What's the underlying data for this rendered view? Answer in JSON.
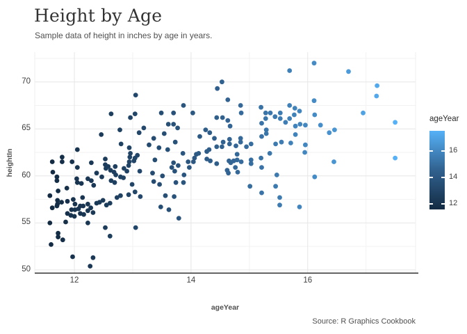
{
  "page": {
    "title": "Height by Age",
    "subtitle": "Sample data of height in inches by age in years.",
    "caption": "Source: R Graphics Cookbook"
  },
  "chart_data": {
    "type": "scatter",
    "title": "Height by Age",
    "subtitle": "Sample data of height in inches by age in years.",
    "caption": "Source: R Graphics Cookbook",
    "xlabel": "ageYear",
    "ylabel": "heightIn",
    "xlim": [
      11.32,
      17.85
    ],
    "ylim": [
      49.66,
      73.16
    ],
    "x_ticks": [
      12,
      14,
      16
    ],
    "x_minor_ticks": [
      13,
      15,
      17
    ],
    "y_ticks": [
      50,
      55,
      60,
      65,
      70
    ],
    "y_minor_ticks": [
      52.5,
      57.5,
      62.5,
      67.5,
      72.5
    ],
    "grid": "on",
    "point_radius": 3.4,
    "colors": {
      "grid_major": "#e6e6e6",
      "grid_minor": "#f2f2f2",
      "panel_edge": "#efefef",
      "axis_line": "#2b2b2b"
    },
    "legend": {
      "title": "ageYear",
      "position": "right",
      "ticks": [
        16,
        14,
        12
      ],
      "domain": [
        11.58,
        17.5
      ],
      "color_low": "#132B43",
      "color_mid": "#31618F",
      "color_high": "#56B1F7"
    },
    "points": [
      [
        13.05,
        68.6
      ],
      [
        14.53,
        70
      ],
      [
        14.45,
        69.3
      ],
      [
        14.63,
        68.1
      ],
      [
        13.87,
        67.5
      ],
      [
        12.63,
        66.6
      ],
      [
        13.7,
        66.7
      ],
      [
        14.03,
        66.7
      ],
      [
        12.96,
        66.2
      ],
      [
        13.04,
        66.6
      ],
      [
        13.61,
        65.5
      ],
      [
        13.7,
        65.5
      ],
      [
        14.44,
        66.2
      ],
      [
        14.54,
        66.2
      ],
      [
        14.63,
        65.9
      ],
      [
        13.77,
        65.1
      ],
      [
        12.46,
        64.4
      ],
      [
        12.78,
        64.9
      ],
      [
        13.11,
        64.6
      ],
      [
        13.19,
        65.1
      ],
      [
        13.36,
        64
      ],
      [
        13.54,
        64.5
      ],
      [
        13.73,
        63.6
      ],
      [
        12.8,
        63.4
      ],
      [
        12.94,
        63
      ],
      [
        13.28,
        63.3
      ],
      [
        12.05,
        62.8
      ],
      [
        12.96,
        62.4
      ],
      [
        13.86,
        62.4
      ],
      [
        14.09,
        62.3
      ],
      [
        14.13,
        62.4
      ],
      [
        14.27,
        62.6
      ],
      [
        14.31,
        62.8
      ],
      [
        14.44,
        63.1
      ],
      [
        14.53,
        63.1
      ],
      [
        14.79,
        62.3
      ],
      [
        15.35,
        62.4
      ],
      [
        15.95,
        62.5
      ],
      [
        16.11,
        72
      ],
      [
        15.69,
        71.2
      ],
      [
        16.7,
        71.1
      ],
      [
        17.19,
        69.6
      ],
      [
        17.18,
        68.5
      ],
      [
        16.11,
        68
      ],
      [
        15.69,
        67.5
      ],
      [
        15.78,
        67.2
      ],
      [
        15.86,
        66.9
      ],
      [
        14.85,
        67.5
      ],
      [
        14.86,
        66.7
      ],
      [
        15.2,
        67.3
      ],
      [
        15.28,
        66.7
      ],
      [
        15.36,
        66.7
      ],
      [
        15.28,
        66.1
      ],
      [
        15.44,
        66.3
      ],
      [
        15.53,
        66.7
      ],
      [
        15.53,
        66.1
      ],
      [
        15.69,
        66.1
      ],
      [
        15.62,
        65.7
      ],
      [
        15.77,
        66.5
      ],
      [
        15.79,
        65.3
      ],
      [
        15.87,
        65.5
      ],
      [
        16.95,
        66.7
      ],
      [
        17.5,
        65.7
      ],
      [
        11.62,
        61.5
      ],
      [
        11.79,
        62
      ],
      [
        11.79,
        61.5
      ],
      [
        11.96,
        61.5
      ],
      [
        12.05,
        60.9
      ],
      [
        12.29,
        61.4
      ],
      [
        12.53,
        61.8
      ],
      [
        12.53,
        61.2
      ],
      [
        12.54,
        60.8
      ],
      [
        12.62,
        60.6
      ],
      [
        12.68,
        60.4
      ],
      [
        12.71,
        60.1
      ],
      [
        12.79,
        59.9
      ],
      [
        12.84,
        59.8
      ],
      [
        12.85,
        60.8
      ],
      [
        12.93,
        61.1
      ],
      [
        12.95,
        62
      ],
      [
        12.94,
        61.5
      ],
      [
        13.02,
        61.6
      ],
      [
        13.04,
        61.9
      ],
      [
        13.12,
        60.5
      ],
      [
        13.38,
        61.7
      ],
      [
        13.34,
        60.3
      ],
      [
        13.51,
        60
      ],
      [
        13.7,
        61.4
      ],
      [
        13.78,
        61.1
      ],
      [
        13.72,
        60.5
      ],
      [
        13.88,
        60.1
      ],
      [
        13.95,
        61.5
      ],
      [
        13.97,
        60.9
      ],
      [
        14.04,
        61.5
      ],
      [
        14.06,
        61.9
      ],
      [
        14.27,
        61.8
      ],
      [
        14.33,
        61.6
      ],
      [
        14.44,
        61.3
      ],
      [
        14.62,
        60.6
      ],
      [
        14.64,
        60.3
      ],
      [
        14.65,
        61.6
      ],
      [
        14.68,
        61.4
      ],
      [
        14.79,
        61.7
      ],
      [
        14.86,
        61.5
      ],
      [
        15.03,
        61.7
      ],
      [
        15.03,
        61.3
      ],
      [
        15.2,
        61.9
      ],
      [
        15.47,
        60.1
      ],
      [
        16.12,
        59.9
      ],
      [
        16.45,
        61.5
      ],
      [
        17.5,
        61.9
      ],
      [
        11.63,
        60.4
      ],
      [
        11.7,
        59.9
      ],
      [
        11.7,
        59.5
      ],
      [
        12.04,
        59.7
      ],
      [
        12.05,
        59.3
      ],
      [
        12.12,
        59.2
      ],
      [
        12.23,
        59.7
      ],
      [
        12.29,
        59.5
      ],
      [
        12.38,
        60.3
      ],
      [
        12.63,
        59.5
      ],
      [
        12.69,
        59.3
      ],
      [
        13.74,
        59.3
      ],
      [
        13.36,
        59.4
      ],
      [
        13.46,
        59.1
      ],
      [
        13.87,
        59.3
      ],
      [
        14.8,
        60.4
      ],
      [
        13.67,
        60.9
      ],
      [
        12.7,
        61
      ],
      [
        12.58,
        61
      ],
      [
        11.87,
        58.7
      ],
      [
        11.72,
        58.4
      ],
      [
        12.33,
        59
      ],
      [
        12.99,
        59.1
      ],
      [
        11.58,
        57.9
      ],
      [
        11.62,
        56.6
      ],
      [
        11.7,
        56.8
      ],
      [
        11.71,
        57.4
      ],
      [
        11.71,
        57
      ],
      [
        11.78,
        57.2
      ],
      [
        11.88,
        57.3
      ],
      [
        11.98,
        57.5
      ],
      [
        12.01,
        57
      ],
      [
        12.1,
        56.8
      ],
      [
        12.15,
        56.8
      ],
      [
        11.95,
        56.4
      ],
      [
        12.01,
        56.4
      ],
      [
        11.88,
        56
      ],
      [
        11.94,
        55.8
      ],
      [
        12,
        55.7
      ],
      [
        12.1,
        56
      ],
      [
        12.16,
        55.9
      ],
      [
        12.23,
        56.3
      ],
      [
        12.28,
        56.6
      ],
      [
        12.23,
        57
      ],
      [
        12.38,
        57.1
      ],
      [
        12.43,
        57.2
      ],
      [
        12.49,
        57.4
      ],
      [
        12.55,
        56.9
      ],
      [
        12.61,
        57.1
      ],
      [
        12.73,
        57.7
      ],
      [
        12.79,
        57.9
      ],
      [
        12.93,
        58
      ],
      [
        13.04,
        58.3
      ],
      [
        12.14,
        57.7
      ],
      [
        12.23,
        55
      ],
      [
        11.85,
        55.1
      ],
      [
        11.58,
        55
      ],
      [
        11.72,
        53.9
      ],
      [
        11.72,
        53.5
      ],
      [
        11.8,
        53.2
      ],
      [
        11.6,
        52.7
      ],
      [
        11.97,
        51.4
      ],
      [
        12.53,
        54.5
      ],
      [
        12.61,
        53.6
      ],
      [
        12.32,
        51.3
      ],
      [
        12.27,
        50.4
      ],
      [
        13.13,
        57.8
      ],
      [
        13.56,
        57.9
      ],
      [
        13.71,
        57.8
      ],
      [
        13.48,
        56.7
      ],
      [
        13.62,
        56.4
      ],
      [
        13.79,
        55.5
      ],
      [
        13.05,
        54.5
      ],
      [
        15.01,
        58.9
      ],
      [
        15.21,
        58.2
      ],
      [
        15.45,
        58.9
      ],
      [
        15.52,
        57.7
      ],
      [
        15.52,
        56.9
      ],
      [
        15.86,
        56.7
      ],
      [
        16.12,
        66.5
      ],
      [
        15.96,
        65.4
      ],
      [
        16.22,
        65.4
      ],
      [
        16.37,
        64.6
      ],
      [
        16.46,
        64.9
      ],
      [
        15.96,
        63.3
      ],
      [
        14.67,
        65.3
      ],
      [
        15.21,
        65.6
      ],
      [
        15.29,
        64.9
      ],
      [
        15.29,
        64.5
      ],
      [
        15.79,
        64.4
      ],
      [
        14.66,
        63.9
      ],
      [
        14.66,
        63.4
      ],
      [
        14.85,
        64
      ],
      [
        14.85,
        63.6
      ],
      [
        14.77,
        63.2
      ],
      [
        14.95,
        63.1
      ],
      [
        15.03,
        63.4
      ],
      [
        15.21,
        64.2
      ],
      [
        15.45,
        63.4
      ],
      [
        15.55,
        63.6
      ],
      [
        15.71,
        63.5
      ],
      [
        14.73,
        61.6
      ],
      [
        15.21,
        60.9
      ],
      [
        14.76,
        60.9
      ],
      [
        13.49,
        66.7
      ],
      [
        14.25,
        64.9
      ],
      [
        14.32,
        64.6
      ],
      [
        13.08,
        62.2
      ],
      [
        14.15,
        64.2
      ],
      [
        14.4,
        64
      ],
      [
        14.55,
        63.6
      ],
      [
        13.45,
        63
      ],
      [
        13.6,
        62.8
      ],
      [
        12.07,
        56.5
      ],
      [
        12.32,
        56.1
      ],
      [
        12.47,
        59.9
      ],
      [
        12.9,
        60.5
      ]
    ]
  }
}
